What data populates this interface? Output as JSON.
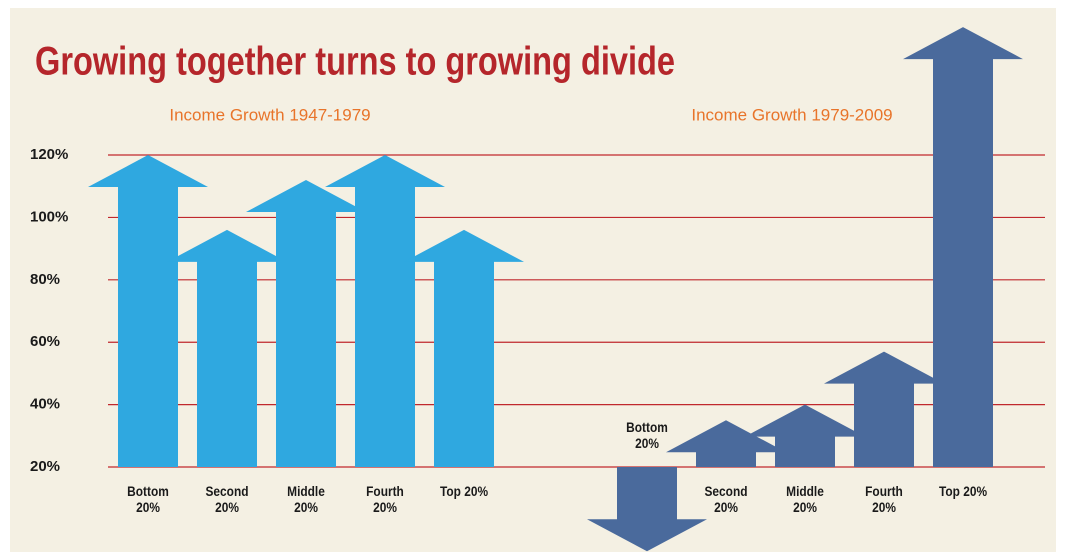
{
  "chart_data": {
    "type": "arrow-bar",
    "title": "Growing together turns to growing divide",
    "ylim": [
      -9,
      162
    ],
    "yticks": [
      {
        "value": 20,
        "label": "20%"
      },
      {
        "value": 40,
        "label": "40%"
      },
      {
        "value": 60,
        "label": "60%"
      },
      {
        "value": 80,
        "label": "80%"
      },
      {
        "value": 100,
        "label": "100%"
      },
      {
        "value": 120,
        "label": "120%"
      }
    ],
    "grid": true,
    "groups": [
      {
        "name": "Income Growth 1947-1979",
        "color": "#2fa8e0",
        "categories": [
          "Bottom 20%",
          "Second 20%",
          "Middle 20%",
          "Fourth 20%",
          "Top 20%"
        ],
        "values": [
          120,
          96,
          112,
          120,
          96
        ]
      },
      {
        "name": "Income Growth 1979-2009",
        "color": "#4a6a9c",
        "categories": [
          "Bottom 20%",
          "Second 20%",
          "Middle 20%",
          "Fourth 20%",
          "Top 20%"
        ],
        "values": [
          -7,
          35,
          40,
          57,
          161
        ]
      }
    ]
  }
}
